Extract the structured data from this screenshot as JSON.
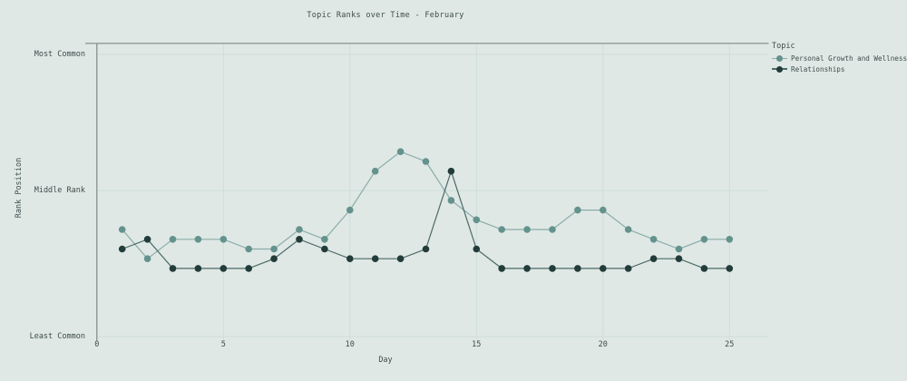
{
  "chart_data": {
    "type": "line",
    "title": "Topic Ranks over Time - February",
    "xlabel": "Day",
    "ylabel": "Rank Position",
    "x_ticks": [
      0,
      5,
      10,
      15,
      20,
      25
    ],
    "x_gridline_days": [
      5,
      10,
      15,
      20,
      25
    ],
    "y_ticks": [
      {
        "label": "Most Common",
        "rank": 1
      },
      {
        "label": "Middle Rank",
        "rank": 15
      },
      {
        "label": "Least Common",
        "rank": 30
      }
    ],
    "y_axis": {
      "min_rank": 1,
      "max_rank": 30,
      "inverted": true,
      "note": "rank 1 = Most Common at top"
    },
    "xlim": [
      0,
      26.5
    ],
    "grid": true,
    "legend": {
      "title": "Topic",
      "position": "top-right"
    },
    "x": [
      1,
      2,
      3,
      4,
      5,
      6,
      7,
      8,
      9,
      10,
      11,
      12,
      13,
      14,
      15,
      16,
      17,
      18,
      19,
      20,
      21,
      22,
      23,
      24,
      25
    ],
    "series": [
      {
        "name": "Personal Growth and Wellness",
        "marker_color": "#64928d",
        "line_color": "#8aada9",
        "values": [
          19,
          22,
          20,
          20,
          20,
          21,
          21,
          19,
          20,
          17,
          13,
          11,
          12,
          16,
          18,
          19,
          19,
          19,
          17,
          17,
          19,
          20,
          21,
          20,
          20
        ]
      },
      {
        "name": "Relationships",
        "marker_color": "#223c3a",
        "line_color": "#4d6a67",
        "values": [
          21,
          20,
          23,
          23,
          23,
          23,
          22,
          20,
          21,
          22,
          22,
          22,
          21,
          13,
          21,
          23,
          23,
          23,
          23,
          23,
          23,
          22,
          22,
          23,
          23
        ]
      }
    ],
    "colors": {
      "background": "#dfe8e5",
      "grid": "#cfdedb",
      "spine": "#7e8a88",
      "text": "#3e4c4c"
    }
  }
}
